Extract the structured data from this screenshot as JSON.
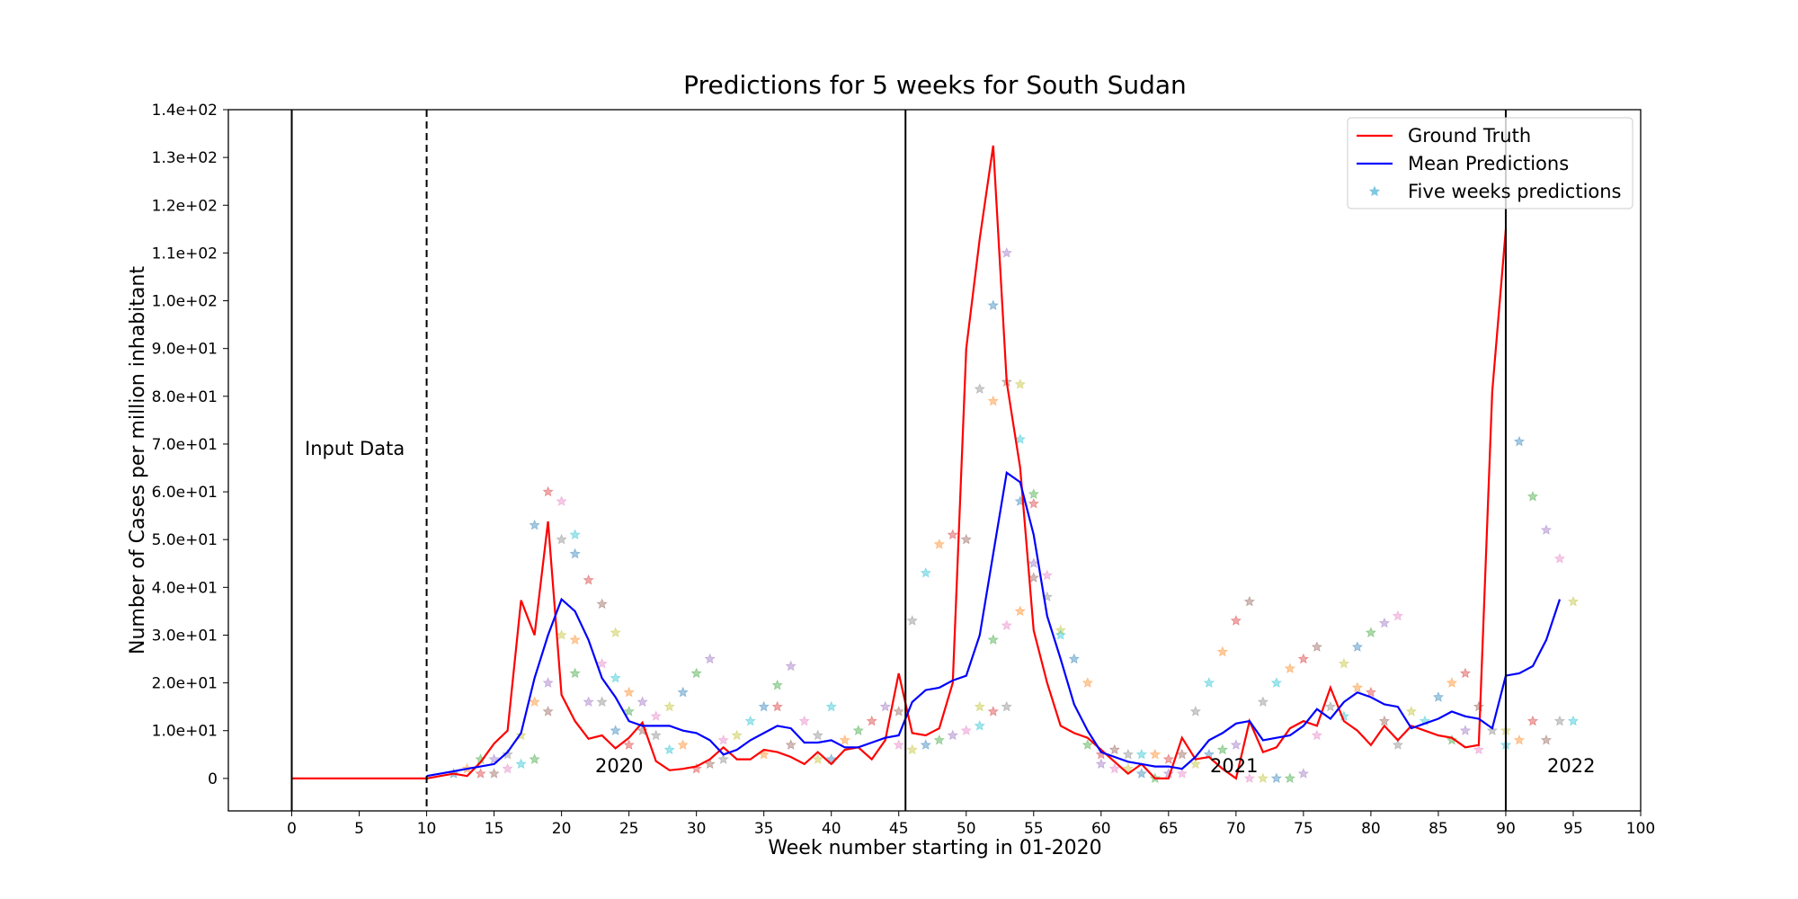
{
  "chart_data": {
    "type": "line",
    "title": "Predictions for 5 weeks for South Sudan",
    "x_label": "Week number starting in 01-2020",
    "y_label": "Number of Cases per million inhabitant",
    "xlim": [
      -4.7,
      100
    ],
    "ylim": [
      -6.8,
      140
    ],
    "xticks": [
      0,
      5,
      10,
      15,
      20,
      25,
      30,
      35,
      40,
      45,
      50,
      55,
      60,
      65,
      70,
      75,
      80,
      85,
      90,
      95,
      100
    ],
    "yticks": [
      0,
      {
        "value": 10,
        "label": "1.0e+01"
      },
      {
        "value": 20,
        "label": "2.0e+01"
      },
      {
        "value": 30,
        "label": "3.0e+01"
      },
      {
        "value": 40,
        "label": "4.0e+01"
      },
      {
        "value": 50,
        "label": "5.0e+01"
      },
      {
        "value": 60,
        "label": "6.0e+01"
      },
      {
        "value": 70,
        "label": "7.0e+01"
      },
      {
        "value": 80,
        "label": "8.0e+01"
      },
      {
        "value": 90,
        "label": "9.0e+01"
      },
      {
        "value": 100,
        "label": "1.0e+02"
      },
      {
        "value": 110,
        "label": "1.1e+02"
      },
      {
        "value": 120,
        "label": "1.2e+02"
      },
      {
        "value": 130,
        "label": "1.3e+02"
      },
      {
        "value": 140,
        "label": "1.4e+02"
      }
    ],
    "legend": "upper right",
    "vlines": [
      {
        "x": 0,
        "style": "solid"
      },
      {
        "x": 10,
        "style": "dashed"
      },
      {
        "x": 45.5,
        "style": "solid"
      },
      {
        "x": 90,
        "style": "solid"
      }
    ],
    "annotations": [
      "Input Data",
      "2020",
      "2021",
      "2022"
    ],
    "series": [
      {
        "name": "Ground Truth",
        "color": "#ff0000",
        "mark": "line",
        "x": [
          0,
          1,
          2,
          3,
          4,
          5,
          6,
          7,
          8,
          9,
          10,
          11,
          12,
          13,
          14,
          15,
          16,
          17,
          18,
          19,
          20,
          21,
          22,
          23,
          24,
          25,
          26,
          27,
          28,
          29,
          30,
          31,
          32,
          33,
          34,
          35,
          36,
          37,
          38,
          39,
          40,
          41,
          42,
          43,
          44,
          45,
          46,
          47,
          48,
          49,
          50,
          51,
          52,
          53,
          54,
          55,
          56,
          57,
          58,
          59,
          60,
          61,
          62,
          63,
          64,
          65,
          66,
          67,
          68,
          69,
          70,
          71,
          72,
          73,
          74,
          75,
          76,
          77,
          78,
          79,
          80,
          81,
          82,
          83,
          84,
          85,
          86,
          87,
          88,
          89,
          90
        ],
        "values": [
          0,
          0,
          0,
          0,
          0,
          0,
          0,
          0,
          0,
          0,
          0,
          0.5,
          1,
          0.5,
          3.4,
          7.3,
          10,
          37.3,
          30,
          53.8,
          17.5,
          12,
          8.3,
          9,
          6.3,
          8.5,
          11.7,
          3.6,
          1.7,
          2,
          2.5,
          4,
          6.5,
          4,
          4,
          6,
          5.5,
          4.5,
          3,
          5.5,
          3,
          6,
          6.5,
          4,
          8,
          22,
          9.5,
          9,
          10.5,
          20,
          90,
          113,
          132.5,
          83,
          65,
          31,
          20,
          11,
          9.5,
          8.5,
          6,
          3.5,
          1,
          3,
          0,
          0,
          8.5,
          4,
          4.5,
          2,
          0,
          12,
          5.5,
          6.5,
          10.5,
          12,
          11,
          19,
          12,
          10,
          7,
          11,
          8,
          11,
          10,
          9,
          8.5,
          6.5,
          7,
          81,
          115
        ]
      },
      {
        "name": "Mean Predictions",
        "color": "#0000ff",
        "mark": "line",
        "x": [
          10,
          11,
          12,
          13,
          14,
          15,
          16,
          17,
          18,
          19,
          20,
          21,
          22,
          23,
          24,
          25,
          26,
          27,
          28,
          29,
          30,
          31,
          32,
          33,
          34,
          35,
          36,
          37,
          38,
          39,
          40,
          41,
          42,
          43,
          44,
          45,
          46,
          47,
          48,
          49,
          50,
          51,
          52,
          53,
          54,
          55,
          56,
          57,
          58,
          59,
          60,
          61,
          62,
          63,
          64,
          65,
          66,
          67,
          68,
          69,
          70,
          71,
          72,
          73,
          74,
          75,
          76,
          77,
          78,
          79,
          80,
          81,
          82,
          83,
          84,
          85,
          86,
          87,
          88,
          89,
          90,
          91,
          92,
          93,
          94
        ],
        "values": [
          0.5,
          1,
          1.5,
          2,
          2.5,
          3,
          5.5,
          9.5,
          21,
          30,
          37.5,
          35,
          29,
          21,
          17,
          12,
          11,
          11,
          11,
          10,
          9.5,
          8,
          5,
          6,
          8,
          9.5,
          11,
          10.5,
          7.5,
          7.5,
          8,
          6.5,
          6.5,
          7.5,
          8.5,
          9,
          16,
          18.5,
          19,
          20.5,
          21.5,
          30,
          47,
          64,
          62,
          51,
          34,
          25,
          15.5,
          10,
          5.5,
          4.5,
          3.5,
          3,
          2.5,
          2.5,
          2,
          4.5,
          8,
          9.5,
          11.5,
          12,
          8,
          8.5,
          9,
          11,
          14.5,
          12.5,
          16,
          18,
          17,
          15.5,
          15,
          10.5,
          11.5,
          12.5,
          14,
          13,
          12.5,
          10.5,
          21.5,
          22,
          23.5,
          29,
          37.5
        ]
      },
      {
        "name": "Five weeks predictions",
        "color": "#7fc8e0",
        "mark": "star",
        "colors": [
          "#1f77b4",
          "#ff7f0e",
          "#2ca02c",
          "#d62728",
          "#9467bd",
          "#8c564b",
          "#e377c2",
          "#7f7f7f",
          "#bcbd22",
          "#17becf"
        ],
        "x": [
          12,
          13,
          14,
          14,
          15,
          15,
          16,
          16,
          17,
          17,
          18,
          18,
          18,
          19,
          19,
          19,
          20,
          20,
          20,
          21,
          21,
          21,
          21,
          22,
          22,
          23,
          23,
          23,
          24,
          24,
          24,
          25,
          25,
          25,
          26,
          26,
          27,
          27,
          28,
          28,
          29,
          29,
          30,
          30,
          31,
          31,
          32,
          32,
          33,
          34,
          35,
          35,
          36,
          36,
          37,
          37,
          38,
          39,
          39,
          40,
          40,
          41,
          42,
          43,
          44,
          45,
          45,
          46,
          46,
          47,
          47,
          48,
          48,
          49,
          49,
          50,
          50,
          51,
          51,
          51,
          52,
          52,
          52,
          52,
          53,
          53,
          53,
          53,
          54,
          54,
          54,
          54,
          55,
          55,
          55,
          55,
          56,
          56,
          57,
          57,
          58,
          59,
          59,
          60,
          60,
          61,
          61,
          62,
          62,
          63,
          63,
          64,
          64,
          65,
          65,
          66,
          66,
          67,
          67,
          68,
          68,
          69,
          69,
          70,
          70,
          71,
          71,
          72,
          72,
          73,
          73,
          74,
          74,
          75,
          75,
          76,
          76,
          77,
          78,
          78,
          79,
          79,
          80,
          80,
          81,
          81,
          82,
          82,
          83,
          84,
          85,
          86,
          86,
          87,
          87,
          88,
          88,
          89,
          90,
          90,
          91,
          91,
          92,
          92,
          93,
          93,
          94,
          94,
          95,
          95
        ],
        "values": [
          1,
          2,
          4,
          1,
          4,
          1,
          2,
          5,
          9,
          3,
          53,
          16,
          4,
          60,
          20,
          14,
          58,
          50,
          30,
          51,
          47,
          29,
          22,
          41.5,
          16,
          36.5,
          24,
          16,
          30.5,
          21,
          10,
          18,
          14,
          7,
          16,
          10,
          13,
          9,
          15,
          6,
          18,
          7,
          22,
          2,
          25,
          3,
          8,
          4,
          9,
          12,
          15,
          5,
          19.5,
          15,
          23.5,
          7,
          12,
          9,
          4,
          15,
          4,
          8,
          10,
          12,
          15,
          14,
          7,
          33,
          6,
          43,
          7,
          49,
          8,
          51,
          9,
          50,
          10,
          81.5,
          15,
          11,
          99,
          79,
          29,
          14,
          110,
          83,
          32,
          15,
          82.5,
          71,
          58,
          35,
          59.5,
          57.5,
          45,
          42,
          42.5,
          38,
          31,
          30,
          25,
          20,
          7,
          5,
          3,
          6,
          2,
          5,
          2,
          5,
          1,
          5,
          0,
          4,
          1,
          5,
          1,
          14,
          3,
          20,
          5,
          26.5,
          6,
          33,
          7,
          37,
          0,
          16,
          0,
          20,
          0,
          23,
          0,
          25,
          1,
          27.5,
          9,
          15,
          24,
          13,
          27.5,
          19,
          30.5,
          18,
          32.5,
          12,
          34,
          7,
          14,
          12,
          17,
          20,
          8,
          22,
          10,
          15,
          6,
          10,
          10,
          7,
          70.5,
          8,
          59,
          12,
          52,
          8,
          46,
          12,
          37,
          12
        ]
      }
    ]
  }
}
